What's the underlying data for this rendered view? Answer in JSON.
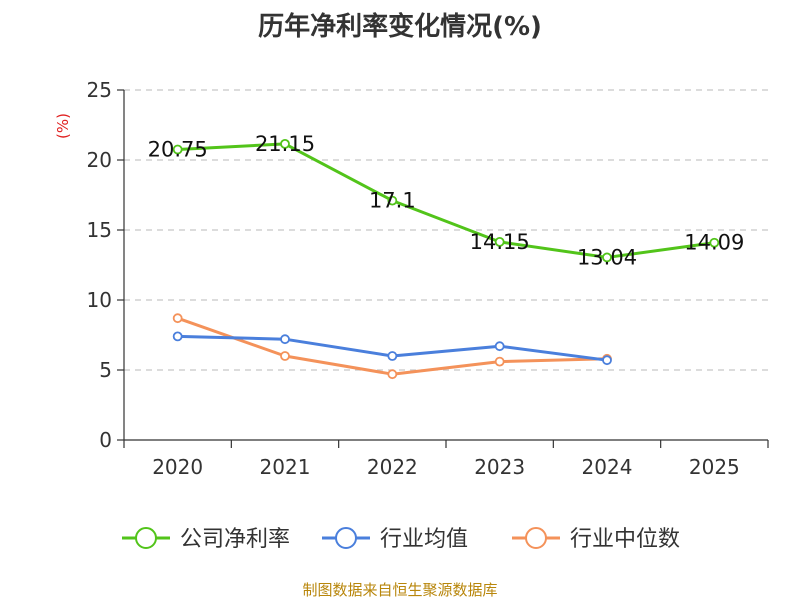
{
  "title": "历年净利率变化情况(%)",
  "footer": "制图数据来自恒生聚源数据库",
  "chart_data": {
    "type": "line",
    "title": "历年净利率变化情况(%)",
    "ylabel": "(%)",
    "xlabel": "",
    "categories": [
      "2020",
      "2021",
      "2022",
      "2023",
      "2024",
      "2025"
    ],
    "ylim": [
      0,
      25
    ],
    "yticks": [
      0,
      5,
      10,
      15,
      20,
      25
    ],
    "grid": true,
    "legend_position": "bottom",
    "series": [
      {
        "name": "公司净利率",
        "color": "#52c41a",
        "values": [
          20.75,
          21.15,
          17.1,
          14.15,
          13.04,
          14.09
        ],
        "labels": [
          "20.75",
          "21.15",
          "17.1",
          "14.15",
          "13.04",
          "14.09"
        ]
      },
      {
        "name": "行业均值",
        "color": "#4a7fdc",
        "values": [
          7.4,
          7.2,
          6.0,
          6.7,
          5.7,
          null
        ]
      },
      {
        "name": "行业中位数",
        "color": "#f4925a",
        "values": [
          8.7,
          6.0,
          4.7,
          5.6,
          5.8,
          null
        ]
      }
    ]
  }
}
